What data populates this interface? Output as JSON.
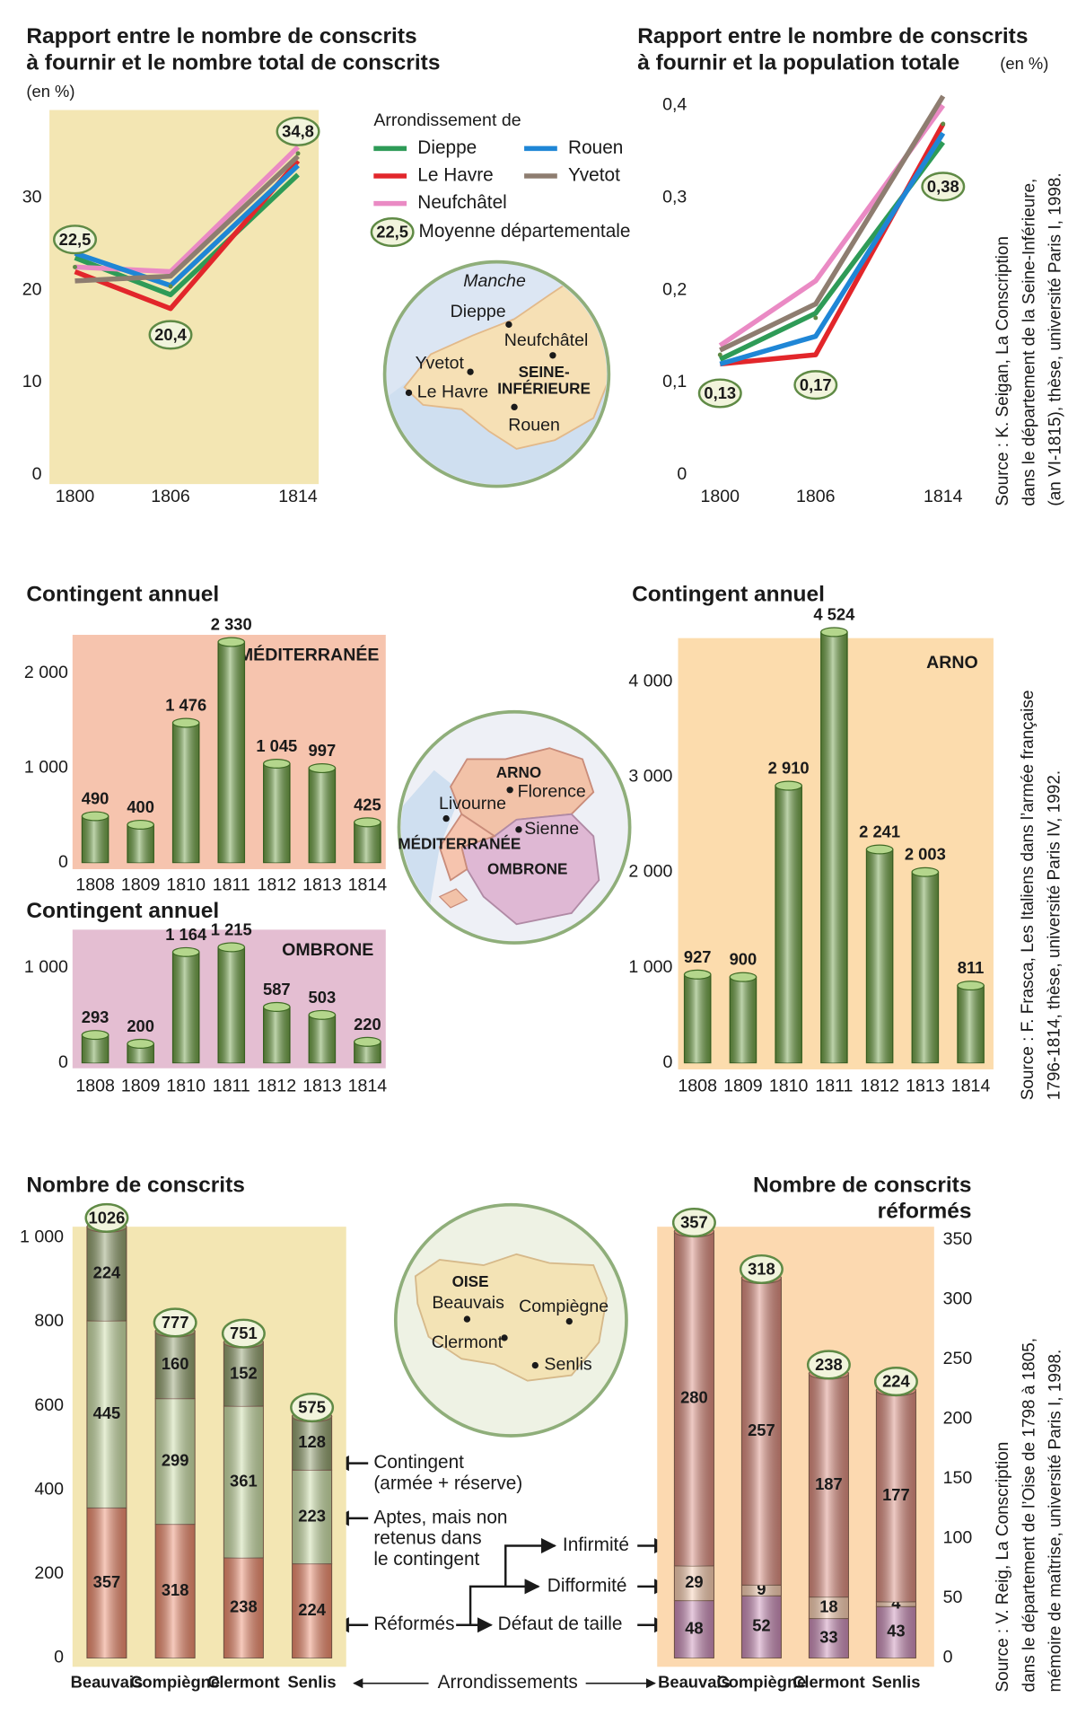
{
  "chart_data": [
    {
      "type": "line",
      "title": [
        "Rapport entre le nombre de conscrits",
        "à fournir et le nombre total de conscrits"
      ],
      "unit": "(en %)",
      "legend_title": "Arrondissement de",
      "x": [
        1800,
        1806,
        1814
      ],
      "xlim": [
        1798.4,
        1815.3
      ],
      "xticks": [
        1800,
        1806,
        1814
      ],
      "ylim": [
        -1,
        39.5
      ],
      "yticks": [
        0,
        10,
        20,
        30
      ],
      "background": "#f3e6b3",
      "series": [
        {
          "name": "Dieppe",
          "color": "#2e9b57",
          "values": [
            23.5,
            19.5,
            32.5
          ]
        },
        {
          "name": "Le Havre",
          "color": "#e2262b",
          "values": [
            22,
            18,
            34
          ]
        },
        {
          "name": "Neufchâtel",
          "color": "#ea8ac4",
          "values": [
            22.5,
            22,
            35.5
          ]
        },
        {
          "name": "Rouen",
          "color": "#1f86d6",
          "values": [
            24,
            20.5,
            33.5
          ]
        },
        {
          "name": "Yvetot",
          "color": "#8e7d70",
          "values": [
            21,
            21.5,
            34.5
          ]
        }
      ],
      "average": {
        "name": "Moyenne départementale",
        "values": [
          22.5,
          20.4,
          34.8
        ],
        "value_labels": [
          "22,5",
          "20,4",
          "34,8"
        ]
      }
    },
    {
      "type": "line",
      "title": [
        "Rapport entre le nombre de conscrits",
        "à fournir et la population totale"
      ],
      "unit": "(en %)",
      "x": [
        1800,
        1806,
        1814
      ],
      "xlim": [
        1798.4,
        1815.3
      ],
      "xticks": [
        1800,
        1806,
        1814
      ],
      "ylim": [
        -0.01,
        0.395
      ],
      "yticks": [
        0,
        {
          "value": 0.1,
          "label": "0,1"
        },
        {
          "value": 0.2,
          "label": "0,2"
        },
        {
          "value": 0.3,
          "label": "0,3"
        },
        {
          "value": 0.4,
          "label": "0,4"
        }
      ],
      "series": [
        {
          "color": "#2e9b57",
          "values": [
            0.125,
            0.175,
            0.36
          ]
        },
        {
          "color": "#e2262b",
          "values": [
            0.12,
            0.13,
            0.38
          ]
        },
        {
          "color": "#ea8ac4",
          "values": [
            0.14,
            0.21,
            0.4
          ]
        },
        {
          "color": "#1f86d6",
          "values": [
            0.12,
            0.15,
            0.37
          ]
        },
        {
          "color": "#8e7d70",
          "values": [
            0.135,
            0.185,
            0.41
          ]
        }
      ],
      "average": {
        "values": [
          0.13,
          0.17,
          0.38
        ],
        "value_labels": [
          "0,13",
          "0,17",
          "0,38"
        ]
      }
    },
    {
      "type": "bar",
      "title": "Contingent annuel",
      "region": "MÉDITERRANÉE",
      "categories": [
        "1808",
        "1809",
        "1810",
        "1811",
        "1812",
        "1813",
        "1814"
      ],
      "values": [
        490,
        400,
        1476,
        2330,
        1045,
        997,
        425
      ],
      "value_labels": [
        "490",
        "400",
        "1 476",
        "2 330",
        "1 045",
        "997",
        "425"
      ],
      "ylim": [
        0,
        2410
      ],
      "yticks": [
        0,
        {
          "value": 1000,
          "label": "1 000"
        },
        {
          "value": 2000,
          "label": "2 000"
        }
      ],
      "color": "#6e9f45",
      "background": "#f6c4ae"
    },
    {
      "type": "bar",
      "title": "Contingent annuel",
      "region": "OMBRONE",
      "categories": [
        "1808",
        "1809",
        "1810",
        "1811",
        "1812",
        "1813",
        "1814"
      ],
      "values": [
        293,
        200,
        1164,
        1215,
        587,
        503,
        220
      ],
      "value_labels": [
        "293",
        "200",
        "1 164",
        "1 215",
        "587",
        "503",
        "220"
      ],
      "ylim": [
        0,
        1400
      ],
      "yticks": [
        0,
        {
          "value": 1000,
          "label": "1 000"
        }
      ],
      "color": "#6e9f45",
      "background": "#e4bed2"
    },
    {
      "type": "bar",
      "title": "Contingent annuel",
      "region": "ARNO",
      "categories": [
        "1808",
        "1809",
        "1810",
        "1811",
        "1812",
        "1813",
        "1814"
      ],
      "values": [
        927,
        900,
        2910,
        4524,
        2241,
        2003,
        811
      ],
      "value_labels": [
        "927",
        "900",
        "2 910",
        "4 524",
        "2 241",
        "2 003",
        "811"
      ],
      "ylim": [
        0,
        4530
      ],
      "yticks": [
        0,
        {
          "value": 1000,
          "label": "1 000"
        },
        {
          "value": 2000,
          "label": "2 000"
        },
        {
          "value": 3000,
          "label": "3 000"
        },
        {
          "value": 4000,
          "label": "4 000"
        }
      ],
      "color": "#6e9f45",
      "background": "#fcdcad"
    },
    {
      "type": "stacked_bar",
      "title": [
        "Nombre de conscrits"
      ],
      "xlabel": "Arrondissements",
      "categories": [
        "Beauvais",
        "Compiègne",
        "Clermont",
        "Senlis"
      ],
      "series": [
        {
          "name": [
            "Réformés"
          ],
          "color": "#ec8a6c",
          "values": [
            357,
            318,
            238,
            224
          ]
        },
        {
          "name": [
            "Aptes, mais non",
            "retenus dans",
            "le contingent"
          ],
          "color": "#c9dca4",
          "values": [
            445,
            299,
            361,
            223
          ]
        },
        {
          "name": [
            "Contingent",
            "(armée + réserve)"
          ],
          "color": "#8f9d6b",
          "values": [
            224,
            160,
            152,
            128
          ]
        }
      ],
      "totals": [
        1026,
        777,
        751,
        575
      ],
      "ylim": [
        0,
        1030
      ],
      "yticks": [
        0,
        200,
        400,
        600,
        800,
        {
          "value": 1000,
          "label": "1 000"
        }
      ],
      "background": "#f3e6b3"
    },
    {
      "type": "stacked_bar",
      "title": [
        "Nombre de conscrits",
        "réformés"
      ],
      "y_axis": "right",
      "categories": [
        "Beauvais",
        "Compiègne",
        "Clermont",
        "Senlis"
      ],
      "series": [
        {
          "name": [
            "Défaut de taille"
          ],
          "color": "#c98cb6",
          "values": [
            48,
            52,
            33,
            43
          ]
        },
        {
          "name": [
            "Difformité"
          ],
          "color": "#f8cdb0",
          "values": [
            29,
            9,
            18,
            4
          ]
        },
        {
          "name": [
            "Infirmité"
          ],
          "color": "#d98a7c",
          "values": [
            280,
            257,
            187,
            177
          ]
        }
      ],
      "totals": [
        357,
        318,
        238,
        224
      ],
      "ylim": [
        0,
        360
      ],
      "yticks": [
        0,
        50,
        100,
        150,
        200,
        250,
        300,
        350
      ],
      "background": "#fcd9b0"
    }
  ],
  "maps": [
    {
      "labels": [
        "Manche",
        "Dieppe",
        "Neufchâtel",
        "Yvetot",
        [
          "SEINE-",
          "INFÉRIEURE"
        ],
        "Le Havre",
        "Rouen"
      ]
    },
    {
      "labels": [
        "ARNO",
        "Florence",
        "Livourne",
        "Sienne",
        "MÉDITERRANÉE",
        "OMBRONE"
      ]
    },
    {
      "labels": [
        "OISE",
        "Beauvais",
        "Compiègne",
        "Clermont",
        "Senlis"
      ]
    }
  ],
  "sources": [
    [
      "Source : K. Seigan, La Conscription",
      "dans le département de la Seine-Inférieure,",
      "(an VI-1815), thèse, université Paris I, 1998."
    ],
    [
      "Source : F. Frasca, Les Italiens dans l’armée française",
      "1796-1814, thèse, université Paris IV, 1992."
    ],
    [
      "Source : V. Reig, La Conscription",
      "dans le département de l’Oise de 1798 à 1805,",
      "mémoire de maîtrise, université Paris I, 1998."
    ]
  ]
}
